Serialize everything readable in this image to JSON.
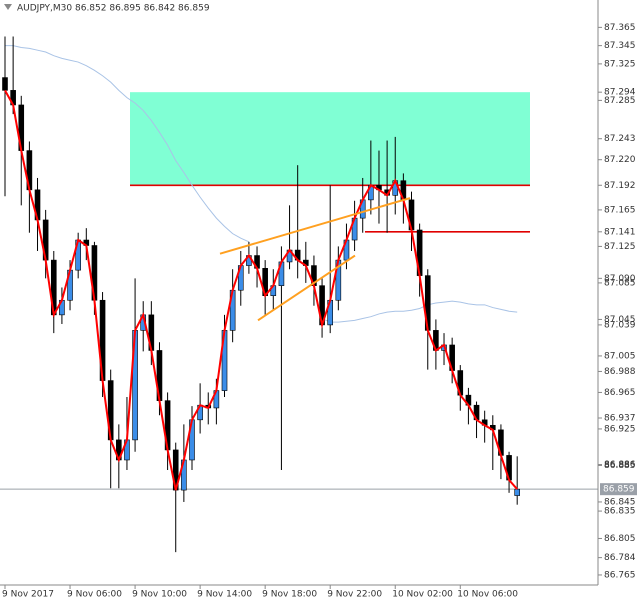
{
  "chart_data": {
    "type": "candlestick",
    "title": "AUDJPY,M30  86.852 86.895 86.842 86.859",
    "categories": [
      "9 Nov 2017",
      null,
      null,
      null,
      null,
      null,
      null,
      null,
      "9 Nov 06:00",
      null,
      null,
      null,
      null,
      null,
      null,
      null,
      "9 Nov 10:00",
      null,
      null,
      null,
      null,
      null,
      null,
      null,
      "9 Nov 14:00",
      null,
      null,
      null,
      null,
      null,
      null,
      null,
      "9 Nov 18:00",
      null,
      null,
      null,
      null,
      null,
      null,
      null,
      "9 Nov 22:00",
      null,
      null,
      null,
      null,
      null,
      null,
      null,
      "10 Nov 02:00",
      null,
      null,
      null,
      null,
      null,
      null,
      null,
      "10 Nov 06:00",
      null,
      null,
      null,
      null,
      null,
      null,
      null
    ],
    "open": [
      87.31,
      87.296,
      87.28,
      87.23,
      87.187,
      87.154,
      87.11,
      87.05,
      87.066,
      87.099,
      87.132,
      87.126,
      87.066,
      86.978,
      86.913,
      86.891,
      86.913,
      87.033,
      87.05,
      87.011,
      86.956,
      86.902,
      86.858,
      86.891,
      86.935,
      86.951,
      86.948,
      86.967,
      87.033,
      87.077,
      87.104,
      87.115,
      87.101,
      87.071,
      87.082,
      87.108,
      87.121,
      87.11,
      87.104,
      87.082,
      87.039,
      87.066,
      87.11,
      87.132,
      87.156,
      87.176,
      87.192,
      87.187,
      87.181,
      87.197,
      87.176,
      87.143,
      87.093,
      87.033,
      87.011,
      87.017,
      86.989,
      86.962,
      86.951,
      86.935,
      86.929,
      86.924,
      86.896,
      86.852
    ],
    "high": [
      87.355,
      87.355,
      87.29,
      87.24,
      87.2,
      87.165,
      87.12,
      87.08,
      87.11,
      87.14,
      87.145,
      87.13,
      87.075,
      86.99,
      86.93,
      86.96,
      87.09,
      87.065,
      87.065,
      87.02,
      86.965,
      86.91,
      86.93,
      86.95,
      86.975,
      86.965,
      86.98,
      87.05,
      87.1,
      87.12,
      87.13,
      87.125,
      87.11,
      87.1,
      87.125,
      87.17,
      87.214,
      87.13,
      87.115,
      87.09,
      87.192,
      87.125,
      87.15,
      87.175,
      87.2,
      87.241,
      87.23,
      87.241,
      87.245,
      87.205,
      87.185,
      87.15,
      87.1,
      87.045,
      87.03,
      87.025,
      86.995,
      86.97,
      86.955,
      86.945,
      86.94,
      86.93,
      86.9,
      86.895
    ],
    "low": [
      87.18,
      87.27,
      87.17,
      87.14,
      87.12,
      87.09,
      87.03,
      87.04,
      87.055,
      87.09,
      87.11,
      87.05,
      86.96,
      86.86,
      86.86,
      86.88,
      86.9,
      87.01,
      86.995,
      86.94,
      86.88,
      86.79,
      86.845,
      86.88,
      86.92,
      86.93,
      86.93,
      86.96,
      87.02,
      87.06,
      87.095,
      87.08,
      87.05,
      87.055,
      86.88,
      87.1,
      87.09,
      87.085,
      87.06,
      87.025,
      87.03,
      87.055,
      87.1,
      87.12,
      87.14,
      87.16,
      87.15,
      87.14,
      87.16,
      87.15,
      87.12,
      87.07,
      86.99,
      86.99,
      86.995,
      86.975,
      86.945,
      86.93,
      86.915,
      86.91,
      86.88,
      86.87,
      86.855,
      86.842
    ],
    "close": [
      87.296,
      87.28,
      87.23,
      87.187,
      87.154,
      87.11,
      87.05,
      87.066,
      87.099,
      87.132,
      87.126,
      87.066,
      86.978,
      86.913,
      86.891,
      86.913,
      87.033,
      87.05,
      87.011,
      86.956,
      86.902,
      86.858,
      86.891,
      86.935,
      86.951,
      86.948,
      86.967,
      87.033,
      87.077,
      87.104,
      87.115,
      87.101,
      87.071,
      87.082,
      87.108,
      87.121,
      87.11,
      87.104,
      87.082,
      87.039,
      87.066,
      87.11,
      87.132,
      87.156,
      87.176,
      87.192,
      87.187,
      87.181,
      87.197,
      87.176,
      87.143,
      87.093,
      87.033,
      87.011,
      87.017,
      86.989,
      86.962,
      86.951,
      86.935,
      86.929,
      86.924,
      86.896,
      86.869,
      86.859
    ],
    "ma": [
      87.345,
      87.345,
      87.343,
      87.342,
      87.34,
      87.338,
      87.334,
      87.331,
      87.329,
      87.327,
      87.323,
      87.318,
      87.312,
      87.305,
      87.296,
      87.288,
      87.282,
      87.274,
      87.263,
      87.25,
      87.236,
      87.219,
      87.206,
      87.192,
      87.179,
      87.167,
      87.156,
      87.147,
      87.139,
      87.134,
      87.13,
      null,
      null,
      null,
      null,
      null,
      null,
      null,
      null,
      87.046,
      87.042,
      87.042,
      87.043,
      87.044,
      87.046,
      87.048,
      87.051,
      87.053,
      87.054,
      87.054,
      87.055,
      87.057,
      87.061,
      87.063,
      87.064,
      87.065,
      87.064,
      87.062,
      87.061,
      87.061,
      87.058,
      87.056,
      87.054,
      87.053
    ],
    "up_color": "#3b8de8",
    "down_color": "#000000",
    "line_color": "#ff0000",
    "ma_color": "#a9c3e6",
    "zone": {
      "top": 87.294,
      "bottom": 87.192,
      "color": "#80ffd4"
    },
    "levels": [
      {
        "value": 87.192,
        "color": "#e00000"
      },
      {
        "value": 87.141,
        "color": "#e00000"
      }
    ],
    "trendlines": [
      {
        "start": 87.117,
        "end": 87.178,
        "color": "#ffa020"
      },
      {
        "start": 87.044,
        "end": 87.115,
        "color": "#ffa020"
      }
    ],
    "current_price": 86.859,
    "ylim": [
      86.754,
      87.395
    ],
    "yticks": [
      87.365,
      87.345,
      87.325,
      87.294,
      87.285,
      87.243,
      {
        "value": 87.22,
        "label": "87.220"
      },
      87.192,
      87.165,
      87.141,
      87.125,
      {
        "value": 87.09,
        "label": "87.090"
      },
      87.085,
      87.045,
      87.039,
      87.005,
      86.988,
      86.965,
      86.937,
      86.925,
      86.886,
      86.885,
      86.845,
      86.835,
      86.805,
      86.784,
      86.765
    ],
    "grid": false
  }
}
